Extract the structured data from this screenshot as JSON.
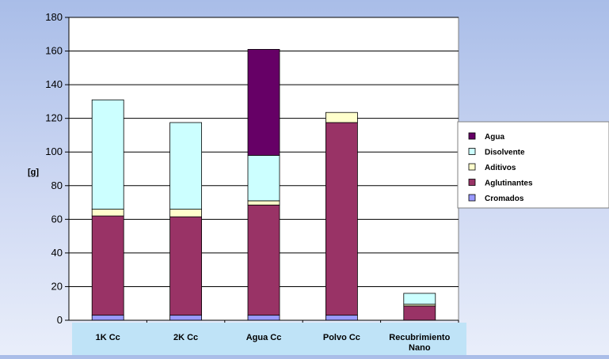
{
  "chart_data": {
    "type": "bar",
    "stacked": true,
    "ylabel": "[g]",
    "ylim": [
      0,
      180
    ],
    "yticks": [
      0,
      20,
      40,
      60,
      80,
      100,
      120,
      140,
      160,
      180
    ],
    "grid": true,
    "legend_position": "right",
    "categories": [
      {
        "lines": [
          "1K Cc"
        ]
      },
      {
        "lines": [
          "2K Cc"
        ]
      },
      {
        "lines": [
          "Agua Cc"
        ]
      },
      {
        "lines": [
          "Polvo Cc"
        ]
      },
      {
        "lines": [
          "Recubrimiento",
          "Nano"
        ]
      }
    ],
    "series": [
      {
        "name": "Cromados",
        "color": "#9999ff",
        "values": [
          3,
          3,
          3,
          3,
          0
        ]
      },
      {
        "name": "Aglutinantes",
        "color": "#993366",
        "values": [
          59,
          58.5,
          65.5,
          114.5,
          8.5
        ]
      },
      {
        "name": "Aditivos",
        "color": "#ffffcc",
        "values": [
          4,
          4.5,
          2.5,
          6,
          1
        ]
      },
      {
        "name": "Disolvente",
        "color": "#ccffff",
        "values": [
          65,
          51.5,
          27,
          0,
          6.5
        ]
      },
      {
        "name": "Agua",
        "color": "#660066",
        "values": [
          0,
          0,
          63,
          0,
          0
        ]
      }
    ]
  }
}
